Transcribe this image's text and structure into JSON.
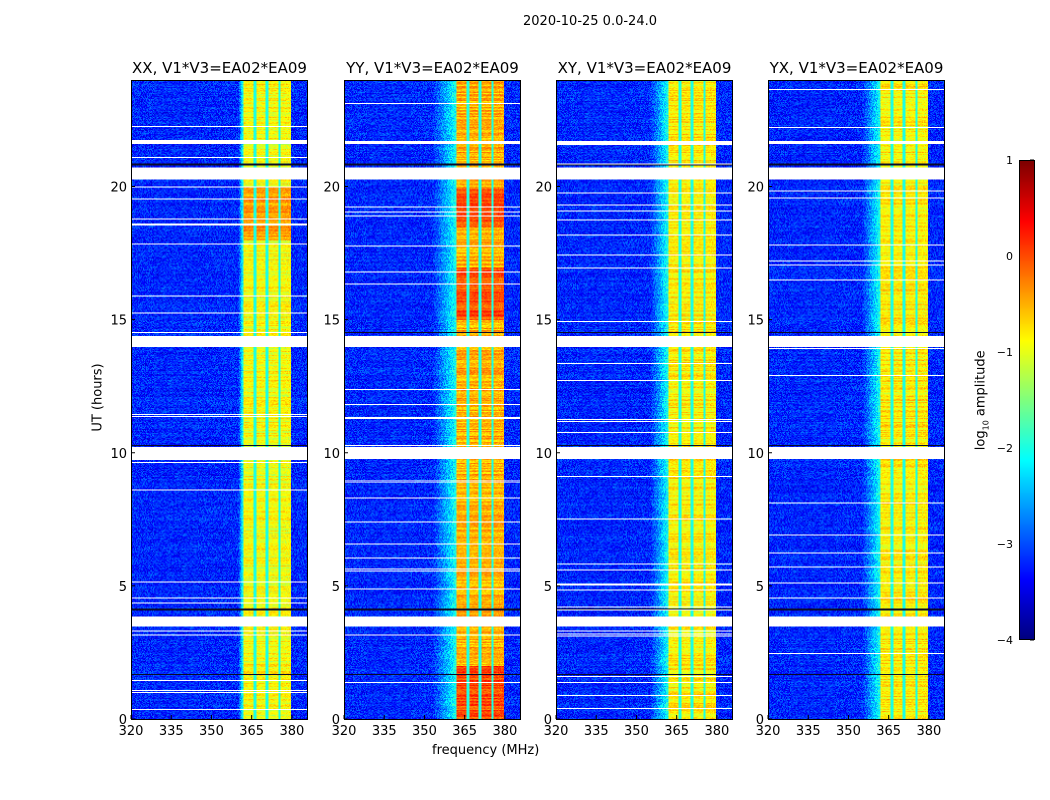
{
  "chart_data": {
    "type": "heatmap",
    "title": "2020-10-25 0.0-24.0",
    "xlabel": "frequency (MHz)",
    "ylabel": "UT (hours)",
    "xlim": [
      320,
      386
    ],
    "ylim": [
      0,
      24
    ],
    "xticks": [
      "320",
      "335",
      "350",
      "365",
      "380"
    ],
    "yticks": [
      "0",
      "5",
      "10",
      "15",
      "20"
    ],
    "colorbar": {
      "label_prefix": "log",
      "label_sub": "10",
      "label_suffix": " amplitude",
      "range": [
        -4,
        1
      ],
      "ticks": [
        "1",
        "0",
        "−1",
        "−2",
        "−3",
        "−4"
      ],
      "colormap": "jet"
    },
    "panels": [
      {
        "title": "XX, V1*V3=EA02*EA09",
        "band_level": -0.9,
        "ramp_start": 360
      },
      {
        "title": "YY, V1*V3=EA02*EA09",
        "band_level": -0.5,
        "ramp_start": 353
      },
      {
        "title": "XY, V1*V3=EA02*EA09",
        "band_level": -0.8,
        "ramp_start": 355
      },
      {
        "title": "YX, V1*V3=EA02*EA09",
        "band_level": -0.8,
        "ramp_start": 355
      }
    ],
    "band_mhz": [
      362,
      380
    ],
    "band_gaps_mhz": [
      366.5,
      371,
      375.5
    ],
    "background_level": -3.2,
    "flagged_hours": [
      [
        3.5,
        3.85
      ],
      [
        9.8,
        10.25
      ],
      [
        14.0,
        14.4
      ],
      [
        20.3,
        20.75
      ],
      [
        21.65,
        21.75
      ]
    ],
    "dark_hours": [
      [
        20.8,
        20.9
      ],
      [
        14.5,
        14.55
      ],
      [
        10.28,
        10.32
      ],
      [
        4.1,
        4.15
      ],
      [
        1.65,
        1.7
      ]
    ]
  }
}
